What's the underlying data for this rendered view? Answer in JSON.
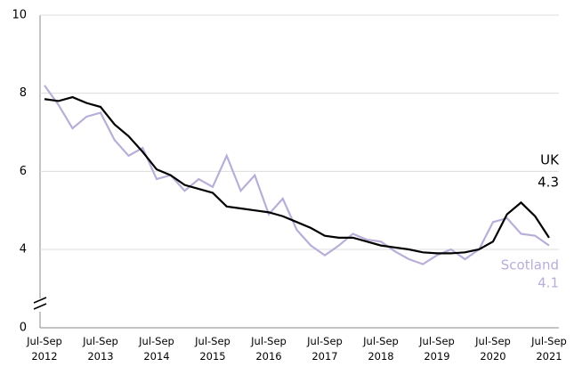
{
  "chart_data": {
    "type": "line",
    "categories": [
      "Jul-Sep 2012",
      null,
      null,
      null,
      "Jul-Sep 2013",
      null,
      null,
      null,
      "Jul-Sep 2014",
      null,
      null,
      null,
      "Jul-Sep 2015",
      null,
      null,
      null,
      "Jul-Sep 2016",
      null,
      null,
      null,
      "Jul-Sep 2017",
      null,
      null,
      null,
      "Jul-Sep 2018",
      null,
      null,
      null,
      "Jul-Sep 2019",
      null,
      null,
      null,
      "Jul-Sep 2020",
      null,
      null,
      null,
      "Jul-Sep 2021"
    ],
    "series": [
      {
        "name": "UK",
        "color": "#000000",
        "values": [
          7.85,
          7.8,
          7.9,
          7.75,
          7.65,
          7.2,
          6.9,
          6.5,
          6.05,
          5.9,
          5.65,
          5.55,
          5.45,
          5.1,
          5.05,
          5.0,
          4.95,
          4.85,
          4.7,
          4.55,
          4.35,
          4.3,
          4.3,
          4.2,
          4.1,
          4.05,
          4.0,
          3.85,
          3.8,
          3.8,
          3.85,
          4.0,
          4.2,
          4.9,
          5.2,
          4.85,
          4.3
        ]
      },
      {
        "name": "Scotland",
        "color": "#b9aed8",
        "values": [
          8.2,
          7.7,
          7.1,
          7.4,
          7.5,
          6.8,
          6.4,
          6.6,
          5.8,
          5.9,
          5.5,
          5.8,
          5.6,
          6.4,
          5.5,
          5.9,
          4.9,
          5.3,
          4.5,
          4.1,
          3.7,
          4.1,
          4.4,
          4.25,
          4.2,
          3.9,
          3.5,
          3.25,
          3.7,
          4.0,
          3.5,
          4.0,
          4.7,
          4.8,
          4.4,
          4.35,
          4.1
        ]
      }
    ],
    "ylim": [
      0,
      10
    ],
    "yticks": [
      0,
      4,
      6,
      8,
      10
    ],
    "y_break": [
      0,
      4
    ],
    "grid": true
  }
}
